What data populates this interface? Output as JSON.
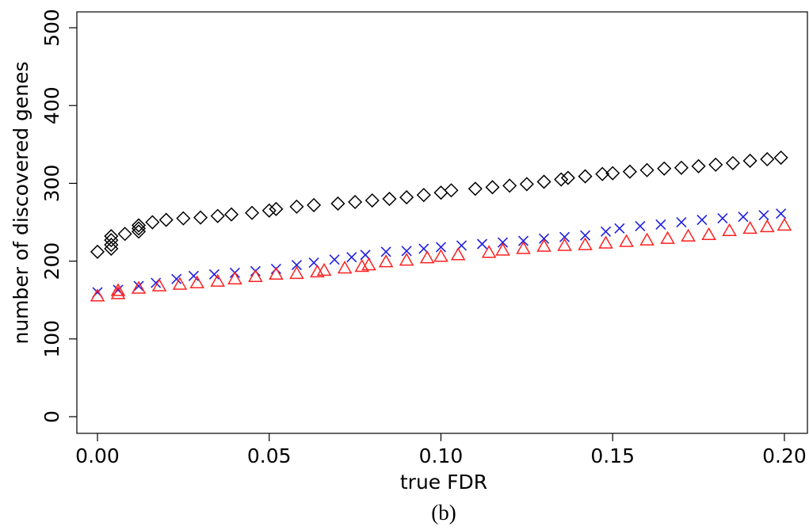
{
  "chart_data": {
    "type": "scatter",
    "x_label": "true FDR",
    "y_label": "number of discovered genes",
    "caption": "(b)",
    "xlim": [
      -0.006,
      0.2067
    ],
    "ylim": [
      -21.4,
      520.4
    ],
    "xticks": [
      {
        "value": 0,
        "label": "0.00"
      },
      {
        "value": 0.05,
        "label": "0.05"
      },
      {
        "value": 0.1,
        "label": "0.10"
      },
      {
        "value": 0.15,
        "label": "0.15"
      },
      {
        "value": 0.2,
        "label": "0.20"
      }
    ],
    "yticks": [
      0,
      100,
      200,
      300,
      400,
      500
    ],
    "grid": false,
    "series": [
      {
        "color": "#000000",
        "marker": "diamond",
        "x": [
          0,
          0.004,
          0.004,
          0.004,
          0.004,
          0.008,
          0.012,
          0.012,
          0.012,
          0.016,
          0.02,
          0.025,
          0.03,
          0.035,
          0.039,
          0.045,
          0.05,
          0.052,
          0.058,
          0.063,
          0.07,
          0.075,
          0.08,
          0.085,
          0.09,
          0.095,
          0.1,
          0.103,
          0.11,
          0.115,
          0.12,
          0.125,
          0.13,
          0.135,
          0.137,
          0.142,
          0.147,
          0.15,
          0.155,
          0.16,
          0.165,
          0.17,
          0.175,
          0.18,
          0.185,
          0.19,
          0.195,
          0.199
        ],
        "values": [
          212,
          216,
          221,
          227,
          232,
          235,
          238,
          242,
          246,
          250,
          253,
          255,
          256,
          258,
          260,
          262,
          265,
          267,
          270,
          272,
          274,
          276,
          278,
          280,
          282,
          285,
          288,
          291,
          293,
          295,
          297,
          299,
          302,
          305,
          307,
          309,
          312,
          313,
          315,
          317,
          319,
          320,
          322,
          324,
          326,
          329,
          331,
          333
        ]
      },
      {
        "color": "#2020e0",
        "marker": "x",
        "x": [
          0,
          0.006,
          0.012,
          0.017,
          0.023,
          0.028,
          0.034,
          0.04,
          0.046,
          0.052,
          0.058,
          0.063,
          0.069,
          0.074,
          0.078,
          0.084,
          0.09,
          0.095,
          0.1,
          0.106,
          0.112,
          0.118,
          0.124,
          0.13,
          0.136,
          0.142,
          0.148,
          0.152,
          0.158,
          0.164,
          0.17,
          0.176,
          0.182,
          0.188,
          0.194,
          0.199
        ],
        "values": [
          160,
          163,
          168,
          172,
          177,
          181,
          183,
          185,
          187,
          190,
          195,
          198,
          202,
          205,
          208,
          212,
          213,
          216,
          218,
          220,
          222,
          224,
          226,
          229,
          231,
          233,
          238,
          242,
          245,
          247,
          250,
          253,
          255,
          257,
          259,
          261
        ]
      },
      {
        "color": "#ff2020",
        "marker": "triangle",
        "x": [
          0,
          0.006,
          0.006,
          0.012,
          0.018,
          0.024,
          0.029,
          0.035,
          0.04,
          0.046,
          0.052,
          0.058,
          0.064,
          0.066,
          0.072,
          0.077,
          0.079,
          0.084,
          0.09,
          0.096,
          0.1,
          0.105,
          0.114,
          0.118,
          0.124,
          0.13,
          0.136,
          0.142,
          0.148,
          0.154,
          0.16,
          0.166,
          0.172,
          0.178,
          0.184,
          0.19,
          0.195,
          0.2
        ],
        "values": [
          155,
          158,
          162,
          165,
          168,
          170,
          172,
          174,
          177,
          180,
          183,
          184,
          186,
          188,
          191,
          193,
          195,
          199,
          201,
          204,
          206,
          208,
          211,
          214,
          216,
          219,
          220,
          221,
          223,
          225,
          227,
          229,
          232,
          234,
          239,
          242,
          244,
          246
        ]
      }
    ]
  }
}
